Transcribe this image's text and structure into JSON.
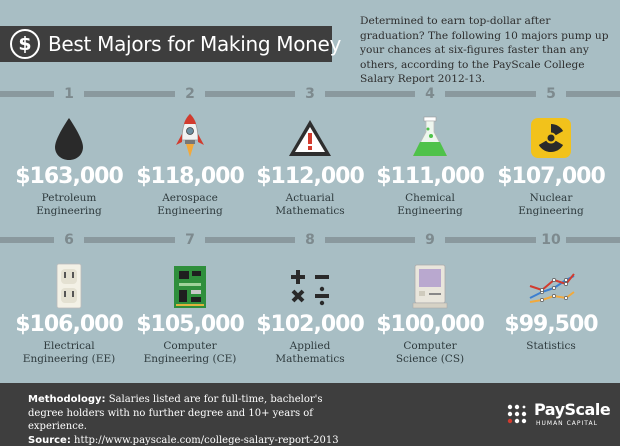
{
  "header": {
    "title": "Best Majors for Making Money",
    "intro": "Determined to earn top-dollar after graduation? The following 10 majors pump up your chances at six-figures faster than any others, according to the PayScale College Salary Report 2012-13."
  },
  "majors": [
    {
      "rank": "1",
      "salary": "$163,000",
      "major_line1": "Petroleum",
      "major_line2": "Engineering",
      "icon": "oil-drop-icon"
    },
    {
      "rank": "2",
      "salary": "$118,000",
      "major_line1": "Aerospace",
      "major_line2": "Engineering",
      "icon": "rocket-icon"
    },
    {
      "rank": "3",
      "salary": "$112,000",
      "major_line1": "Actuarial",
      "major_line2": "Mathematics",
      "icon": "warning-icon"
    },
    {
      "rank": "4",
      "salary": "$111,000",
      "major_line1": "Chemical",
      "major_line2": "Engineering",
      "icon": "flask-icon"
    },
    {
      "rank": "5",
      "salary": "$107,000",
      "major_line1": "Nuclear",
      "major_line2": "Engineering",
      "icon": "radiation-icon"
    },
    {
      "rank": "6",
      "salary": "$106,000",
      "major_line1": "Electrical",
      "major_line2": "Engineering (EE)",
      "icon": "outlet-icon"
    },
    {
      "rank": "7",
      "salary": "$105,000",
      "major_line1": "Computer",
      "major_line2": "Engineering (CE)",
      "icon": "circuit-board-icon"
    },
    {
      "rank": "8",
      "salary": "$102,000",
      "major_line1": "Applied",
      "major_line2": "Mathematics",
      "icon": "math-operators-icon"
    },
    {
      "rank": "9",
      "salary": "$100,000",
      "major_line1": "Computer",
      "major_line2": "Science (CS)",
      "icon": "computer-icon"
    },
    {
      "rank": "10",
      "salary": "$99,500",
      "major_line1": "Statistics",
      "major_line2": "",
      "icon": "line-graph-icon"
    }
  ],
  "footer": {
    "methodology_label": "Methodology:",
    "methodology_text": " Salaries listed are for full-time, bachelor's degree holders with no further degree and 10+ years of experience.",
    "source_label": "Source:",
    "source_text": " http://www.payscale.com/college-salary-report-2013",
    "logo_name": "PayScale",
    "logo_tagline": "HUMAN CAPITAL"
  },
  "colors": {
    "background": "#a8bec4",
    "banner": "#3e3e3e",
    "salary_text": "#ffffff",
    "row_line": "#8a999e"
  }
}
